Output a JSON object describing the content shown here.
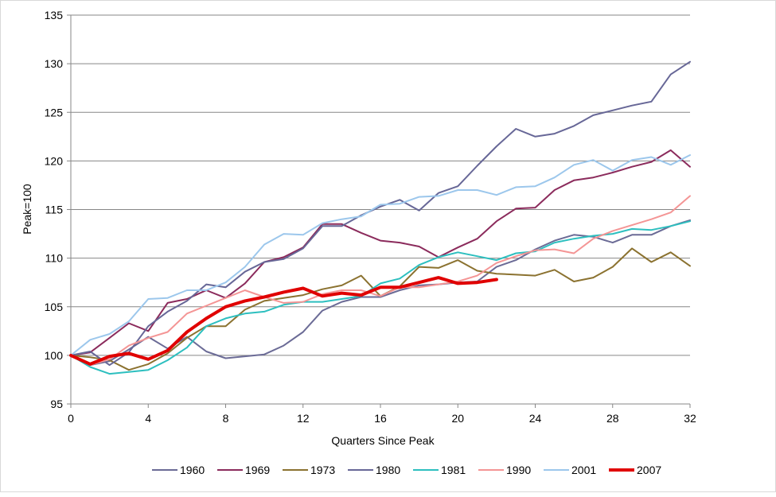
{
  "chart_data": {
    "type": "line",
    "title": "",
    "xlabel": "Quarters Since Peak",
    "ylabel": "Peak=100",
    "xlim": [
      0,
      32
    ],
    "ylim": [
      95,
      135
    ],
    "xticks": [
      0,
      4,
      8,
      12,
      16,
      20,
      24,
      28,
      32
    ],
    "yticks": [
      95,
      100,
      105,
      110,
      115,
      120,
      125,
      130,
      135
    ],
    "grid": "horizontal",
    "legend_position": "bottom",
    "series": [
      {
        "name": "1960",
        "color": "#6b6b96",
        "width": 2,
        "values": [
          100,
          99.0,
          99.4,
          100.6,
          101.9,
          100.7,
          101.9,
          100.4,
          99.7,
          99.9,
          100.1,
          101.0,
          102.4,
          104.6,
          105.5,
          106.0,
          106.0,
          106.7,
          107.2,
          107.3,
          107.5,
          107.6,
          109.1,
          109.8,
          110.9,
          111.8,
          112.4,
          112.2,
          111.6,
          112.4,
          112.4,
          113.3,
          113.9
        ]
      },
      {
        "name": "1969",
        "color": "#8b2b5c",
        "width": 2,
        "values": [
          100,
          100.3,
          101.8,
          103.3,
          102.5,
          105.4,
          105.8,
          106.7,
          105.9,
          107.4,
          109.6,
          110.1,
          111.1,
          113.5,
          113.5,
          112.6,
          111.8,
          111.6,
          111.2,
          110.1,
          111.1,
          112.0,
          113.8,
          115.1,
          115.2,
          117.0,
          118.0,
          118.3,
          118.8,
          119.4,
          119.9,
          121.1,
          119.4
        ]
      },
      {
        "name": "1973",
        "color": "#8b7230",
        "width": 2,
        "values": [
          100,
          99.8,
          99.5,
          98.5,
          99.1,
          100.2,
          101.8,
          103.0,
          103.0,
          104.7,
          105.6,
          105.9,
          106.2,
          106.8,
          107.2,
          108.2,
          106.1,
          107.1,
          109.1,
          109.0,
          109.8,
          108.7,
          108.4,
          108.3,
          108.2,
          108.8,
          107.6,
          108.0,
          109.1,
          111.0,
          109.6,
          110.6,
          109.2
        ]
      },
      {
        "name": "1980",
        "color": "#676797",
        "width": 2,
        "values": [
          100,
          100.4,
          99.0,
          100.3,
          103.0,
          104.5,
          105.6,
          107.3,
          107.0,
          108.6,
          109.6,
          109.9,
          111.0,
          113.3,
          113.3,
          114.4,
          115.3,
          116.0,
          114.9,
          116.7,
          117.4,
          119.5,
          121.5,
          123.3,
          122.5,
          122.8,
          123.6,
          124.7,
          125.2,
          125.7,
          126.1,
          128.9,
          130.2
        ]
      },
      {
        "name": "1981",
        "color": "#2dbfbf",
        "width": 2,
        "values": [
          100,
          98.8,
          98.1,
          98.3,
          98.5,
          99.5,
          100.8,
          103.0,
          103.8,
          104.3,
          104.5,
          105.2,
          105.5,
          105.5,
          105.8,
          106.1,
          107.4,
          107.9,
          109.3,
          110.1,
          110.6,
          110.2,
          109.8,
          110.5,
          110.7,
          111.6,
          112.0,
          112.3,
          112.5,
          113.0,
          112.9,
          113.3,
          113.8
        ]
      },
      {
        "name": "1990",
        "color": "#f49595",
        "width": 2,
        "values": [
          100,
          99.0,
          99.6,
          101.0,
          101.8,
          102.4,
          104.3,
          105.1,
          105.9,
          106.7,
          106.0,
          105.4,
          105.5,
          106.3,
          106.7,
          106.7,
          106.1,
          107.0,
          107.0,
          107.3,
          107.6,
          108.2,
          109.5,
          110.2,
          110.8,
          110.9,
          110.5,
          112.0,
          112.8,
          113.4,
          114.0,
          114.7,
          116.4
        ]
      },
      {
        "name": "2001",
        "color": "#9cc7ec",
        "width": 2,
        "values": [
          100,
          101.6,
          102.2,
          103.5,
          105.8,
          105.9,
          106.7,
          106.7,
          107.5,
          109.1,
          111.4,
          112.5,
          112.4,
          113.6,
          114.0,
          114.3,
          115.5,
          115.6,
          116.3,
          116.4,
          117.0,
          117.0,
          116.5,
          117.3,
          117.4,
          118.3,
          119.6,
          120.1,
          119.0,
          120.1,
          120.4,
          119.6,
          120.6
        ]
      },
      {
        "name": "2007",
        "color": "#e00000",
        "width": 4,
        "values": [
          100,
          99.1,
          99.9,
          100.2,
          99.6,
          100.5,
          102.4,
          103.8,
          105.0,
          105.6,
          106.0,
          106.5,
          106.9,
          106.1,
          106.4,
          106.2,
          107.0,
          107.0,
          107.5,
          108.0,
          107.4,
          107.5,
          107.8
        ]
      }
    ]
  }
}
